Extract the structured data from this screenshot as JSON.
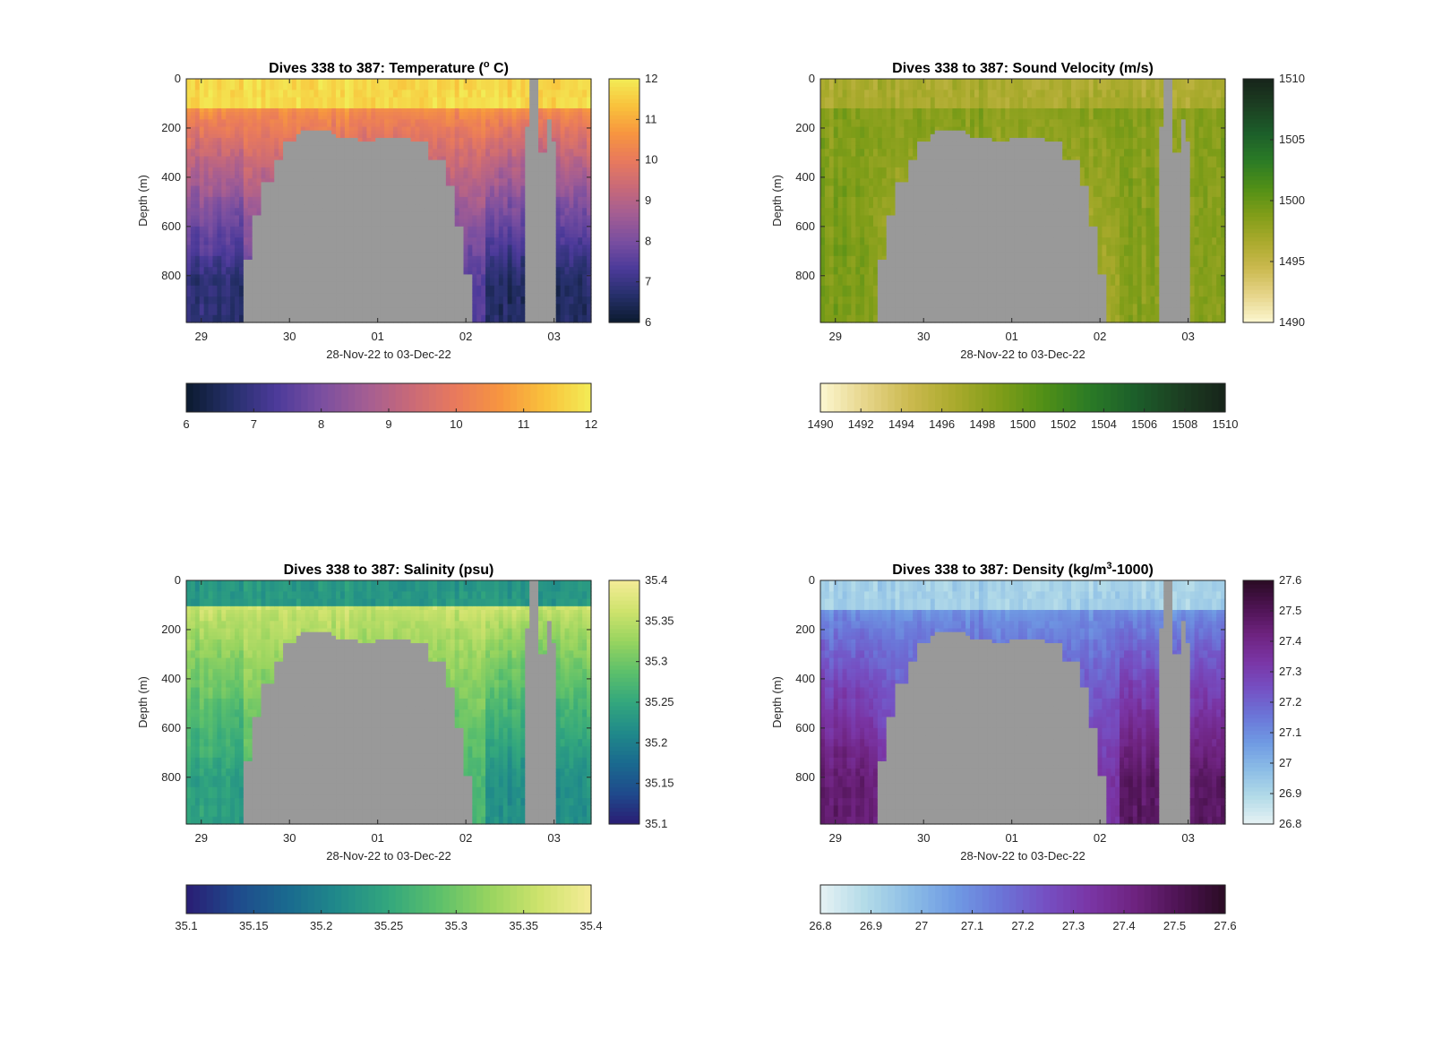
{
  "figure": {
    "background": "#ffffff",
    "land_color": "#999999"
  },
  "chart_data": [
    {
      "type": "heatmap",
      "id": "temperature",
      "title": "Dives 338 to 387: Temperature (",
      "title_sup": "o",
      "title_post": " C)",
      "xlabel": "28-Nov-22 to 03-Dec-22",
      "ylabel": "Depth (m)",
      "x_ticks": [
        "29",
        "30",
        "01",
        "02",
        "03"
      ],
      "x_range_days": [
        28.83,
        33.42
      ],
      "y_ticks": [
        "0",
        "200",
        "400",
        "600",
        "800"
      ],
      "ylim": [
        0,
        990
      ],
      "y_reversed": true,
      "clim": [
        6,
        12
      ],
      "colorbar_right_ticks": [
        "12",
        "11",
        "10",
        "9",
        "8",
        "7",
        "6"
      ],
      "colorbar_bottom_ticks": [
        "6",
        "7",
        "8",
        "9",
        "10",
        "11",
        "12"
      ],
      "colormap": [
        "#0b1a2e",
        "#26306b",
        "#4c3a9a",
        "#7a4fa0",
        "#a35d93",
        "#c96a78",
        "#e97a5c",
        "#f7963f",
        "#f9c23c",
        "#f2ec56"
      ],
      "profile": {
        "surface": 11.7,
        "mix_depth": 120,
        "thermocline_top": 10.6,
        "deep": 7.4,
        "left_deep": 6.8,
        "right_deep": 6.6
      }
    },
    {
      "type": "heatmap",
      "id": "sound_velocity",
      "title": "Dives 338 to 387: Sound Velocity (m/s)",
      "xlabel": "28-Nov-22 to 03-Dec-22",
      "ylabel": "Depth (m)",
      "x_ticks": [
        "29",
        "30",
        "01",
        "02",
        "03"
      ],
      "x_range_days": [
        28.83,
        33.42
      ],
      "y_ticks": [
        "0",
        "200",
        "400",
        "600",
        "800"
      ],
      "ylim": [
        0,
        990
      ],
      "y_reversed": true,
      "clim": [
        1490,
        1510
      ],
      "colorbar_right_ticks": [
        "1510",
        "1505",
        "1500",
        "1495",
        "1490"
      ],
      "colorbar_bottom_ticks": [
        "1490",
        "1492",
        "1494",
        "1496",
        "1498",
        "1500",
        "1502",
        "1504",
        "1506",
        "1508",
        "1510"
      ],
      "colormap": [
        "#fcf6d0",
        "#e6d58a",
        "#cbb94f",
        "#a9aa2c",
        "#7f9d18",
        "#4f8f17",
        "#2a7a26",
        "#1c5e2a",
        "#1c3f22",
        "#17241a"
      ],
      "profile": {
        "surface": 1496.5,
        "mix_depth": 120,
        "thermocline_top": 1498.5,
        "deep": 1497.0,
        "left_deep": 1499.0,
        "right_deep": 1498.5
      }
    },
    {
      "type": "heatmap",
      "id": "salinity",
      "title": "Dives 338 to 387: Salinity (psu)",
      "xlabel": "28-Nov-22 to 03-Dec-22",
      "ylabel": "Depth (m)",
      "x_ticks": [
        "29",
        "30",
        "01",
        "02",
        "03"
      ],
      "x_range_days": [
        28.83,
        33.42
      ],
      "y_ticks": [
        "0",
        "200",
        "400",
        "600",
        "800"
      ],
      "ylim": [
        0,
        990
      ],
      "y_reversed": true,
      "clim": [
        35.1,
        35.4
      ],
      "colorbar_right_ticks": [
        "35.4",
        "35.35",
        "35.3",
        "35.25",
        "35.2",
        "35.15",
        "35.1"
      ],
      "colorbar_bottom_ticks": [
        "35.1",
        "35.15",
        "35.2",
        "35.25",
        "35.3",
        "35.35",
        "35.4"
      ],
      "colormap": [
        "#2a1d74",
        "#1f4a8c",
        "#1a6a8f",
        "#208a8a",
        "#33a77d",
        "#5dc06b",
        "#98d45f",
        "#cfe36d",
        "#f5ec97"
      ],
      "profile": {
        "surface": 35.23,
        "mix_depth": 110,
        "thermocline_top": 35.36,
        "deep": 35.27,
        "left_deep": 35.24,
        "right_deep": 35.22
      }
    },
    {
      "type": "heatmap",
      "id": "density",
      "title": "Dives 338 to 387: Density (kg/m",
      "title_sup": "3",
      "title_post": "-1000)",
      "xlabel": "28-Nov-22 to 03-Dec-22",
      "ylabel": "Depth (m)",
      "x_ticks": [
        "29",
        "30",
        "01",
        "02",
        "03"
      ],
      "x_range_days": [
        28.83,
        33.42
      ],
      "y_ticks": [
        "0",
        "200",
        "400",
        "600",
        "800"
      ],
      "ylim": [
        0,
        990
      ],
      "y_reversed": true,
      "clim": [
        26.8,
        27.6
      ],
      "colorbar_right_ticks": [
        "27.6",
        "27.5",
        "27.4",
        "27.3",
        "27.2",
        "27.1",
        "27",
        "26.9",
        "26.8"
      ],
      "colorbar_bottom_ticks": [
        "26.8",
        "26.9",
        "27",
        "27.1",
        "27.2",
        "27.3",
        "27.4",
        "27.5",
        "27.6"
      ],
      "colormap": [
        "#e6f2f4",
        "#b3dbe8",
        "#8cbde6",
        "#6f9ae3",
        "#6b75d8",
        "#7550c3",
        "#7a35a5",
        "#6e237f",
        "#4d1352",
        "#2a0b23"
      ],
      "profile": {
        "surface": 26.92,
        "mix_depth": 120,
        "thermocline_top": 27.08,
        "deep": 27.33,
        "left_deep": 27.45,
        "right_deep": 27.48
      }
    }
  ]
}
